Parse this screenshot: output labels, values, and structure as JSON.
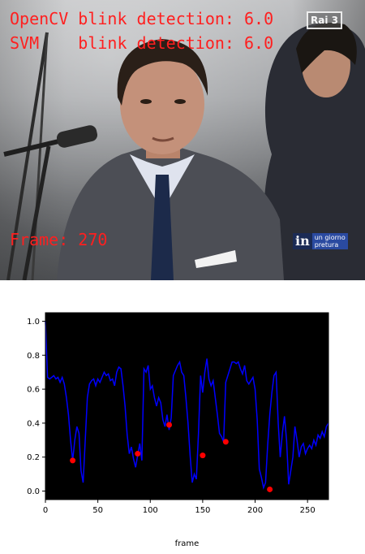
{
  "video": {
    "overlay_opencv": "OpenCV blink detection: 6.0",
    "overlay_svm": "SVM    blink detection: 6.0",
    "overlay_frame": "Frame: 270",
    "channel_logo": "Rai 3",
    "show_logo_main": "in",
    "show_logo_sub_1": "un giorno",
    "show_logo_sub_2": "pretura",
    "overlay_color": "#ff1f1f"
  },
  "chart_data": {
    "type": "line",
    "xlabel": "frame",
    "ylabel": "",
    "title": "",
    "xlim": [
      0,
      270
    ],
    "ylim": [
      -0.05,
      1.05
    ],
    "xticks": [
      0,
      50,
      100,
      150,
      200,
      250
    ],
    "yticks": [
      0.0,
      0.2,
      0.4,
      0.6,
      0.8,
      1.0
    ],
    "xtick_labels": [
      "0",
      "50",
      "100",
      "150",
      "200",
      "250"
    ],
    "ytick_labels": [
      "0.0",
      "0.2",
      "0.4",
      "0.6",
      "0.8",
      "1.0"
    ],
    "background": "#000000",
    "line_color": "#0000ff",
    "marker_color": "#ff0000",
    "series": [
      {
        "x": [
          0,
          2,
          4,
          6,
          8,
          10,
          12,
          14,
          16,
          18,
          20,
          22,
          24,
          26,
          28,
          30,
          32,
          34,
          36,
          38,
          40,
          42,
          44,
          46,
          48,
          50,
          52,
          54,
          56,
          58,
          60,
          62,
          64,
          66,
          68,
          70,
          72,
          74,
          76,
          78,
          80,
          82,
          84,
          86,
          88,
          90,
          92,
          94,
          96,
          98,
          100,
          102,
          104,
          106,
          108,
          110,
          112,
          114,
          116,
          118,
          120,
          122,
          124,
          126,
          128,
          130,
          132,
          134,
          136,
          138,
          140,
          142,
          144,
          146,
          148,
          150,
          152,
          154,
          156,
          158,
          160,
          162,
          164,
          166,
          168,
          170,
          172,
          174,
          176,
          178,
          180,
          182,
          184,
          186,
          188,
          190,
          192,
          194,
          196,
          198,
          200,
          202,
          204,
          206,
          208,
          210,
          212,
          214,
          216,
          218,
          220,
          222,
          224,
          226,
          228,
          230,
          232,
          234,
          236,
          238,
          240,
          242,
          244,
          246,
          248,
          250,
          252,
          254,
          256,
          258,
          260,
          262,
          264,
          266,
          268,
          270
        ],
        "y": [
          1.0,
          0.67,
          0.66,
          0.67,
          0.68,
          0.66,
          0.67,
          0.64,
          0.67,
          0.63,
          0.55,
          0.45,
          0.3,
          0.18,
          0.3,
          0.38,
          0.34,
          0.12,
          0.05,
          0.3,
          0.55,
          0.63,
          0.65,
          0.66,
          0.62,
          0.66,
          0.64,
          0.67,
          0.7,
          0.68,
          0.69,
          0.65,
          0.66,
          0.62,
          0.7,
          0.73,
          0.72,
          0.62,
          0.5,
          0.33,
          0.22,
          0.26,
          0.19,
          0.14,
          0.21,
          0.28,
          0.18,
          0.72,
          0.7,
          0.74,
          0.6,
          0.62,
          0.55,
          0.5,
          0.55,
          0.52,
          0.42,
          0.38,
          0.45,
          0.36,
          0.43,
          0.68,
          0.71,
          0.74,
          0.76,
          0.7,
          0.68,
          0.55,
          0.4,
          0.21,
          0.05,
          0.1,
          0.07,
          0.34,
          0.68,
          0.58,
          0.7,
          0.78,
          0.66,
          0.62,
          0.65,
          0.55,
          0.45,
          0.34,
          0.32,
          0.29,
          0.64,
          0.68,
          0.72,
          0.76,
          0.76,
          0.75,
          0.76,
          0.72,
          0.69,
          0.74,
          0.65,
          0.63,
          0.65,
          0.67,
          0.6,
          0.42,
          0.13,
          0.08,
          0.02,
          0.05,
          0.27,
          0.45,
          0.58,
          0.68,
          0.7,
          0.4,
          0.2,
          0.34,
          0.44,
          0.3,
          0.04,
          0.12,
          0.2,
          0.38,
          0.3,
          0.2,
          0.26,
          0.28,
          0.22,
          0.25,
          0.27,
          0.25,
          0.3,
          0.27,
          0.33,
          0.31,
          0.35,
          0.32,
          0.38,
          0.4
        ]
      }
    ],
    "markers": {
      "x": [
        26,
        88,
        118,
        150,
        172,
        214
      ],
      "y": [
        0.18,
        0.22,
        0.39,
        0.21,
        0.29,
        0.01
      ]
    }
  }
}
